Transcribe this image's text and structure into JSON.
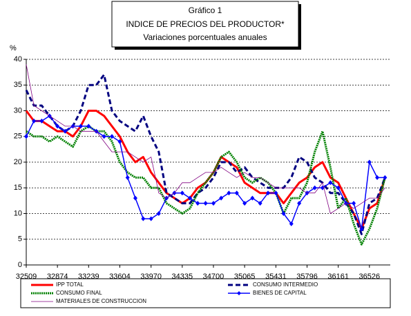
{
  "chart_data": {
    "type": "line",
    "title": "Gráfico 1",
    "subtitle": [
      "INDICE DE PRECIOS DEL PRODUCTOR*",
      "Variaciones porcentuales anuales"
    ],
    "y_label": "%",
    "x": [
      32509,
      32599,
      32690,
      32782,
      32874,
      32964,
      33055,
      33147,
      33239,
      33329,
      33420,
      33512,
      33604,
      33695,
      33786,
      33878,
      33970,
      34060,
      34151,
      34243,
      34335,
      34425,
      34516,
      34608,
      34700,
      34790,
      34881,
      34973,
      35065,
      35156,
      35247,
      35339,
      35431,
      35521,
      35612,
      35704,
      35796,
      35886,
      35977,
      36069,
      36161,
      36251,
      36342,
      36434,
      36526,
      36617,
      36708
    ],
    "xlim": [
      32509,
      36770
    ],
    "xticks": [
      32509,
      32874,
      33239,
      33604,
      33970,
      34335,
      34700,
      35065,
      35431,
      35796,
      36161,
      36526
    ],
    "ylim": [
      0,
      40
    ],
    "yticks": [
      0,
      5,
      10,
      15,
      20,
      25,
      30,
      35,
      40
    ],
    "grid": true,
    "series": [
      {
        "name": "IPP TOTAL",
        "color": "#ff0000",
        "line_style": "solid",
        "width": 3,
        "values": [
          30,
          28,
          28,
          27,
          26,
          26,
          25,
          27,
          30,
          30,
          29,
          27,
          25,
          22,
          20,
          21,
          18,
          16,
          14,
          13,
          12,
          13,
          15,
          16,
          18,
          21,
          20,
          19,
          16,
          15,
          14,
          14,
          14,
          12,
          14,
          16,
          17,
          19,
          20,
          17,
          16,
          13,
          10,
          7,
          11,
          12,
          17
        ]
      },
      {
        "name": "CONSUMO INTERMEDIO",
        "color": "#000080",
        "line_style": "dashed",
        "width": 3,
        "values": [
          34,
          31,
          31,
          29,
          27,
          26,
          27,
          30,
          35,
          35,
          37,
          30,
          28,
          27,
          26,
          29,
          25,
          22,
          14,
          13,
          12,
          12,
          14,
          15,
          17,
          20,
          20,
          18,
          19,
          17,
          16,
          15,
          15,
          15,
          17,
          21,
          20,
          17,
          16,
          14,
          14,
          12,
          10,
          6,
          12,
          13,
          17
        ]
      },
      {
        "name": "CONSUMO FINAL",
        "color": "#008000",
        "line_style": "dotted",
        "width": 3,
        "values": [
          26,
          25,
          25,
          24,
          25,
          24,
          23,
          26,
          27,
          26,
          26,
          24,
          20,
          18,
          17,
          17,
          15,
          15,
          12,
          11,
          10,
          11,
          14,
          16,
          18,
          21,
          22,
          20,
          17,
          16,
          17,
          16,
          14,
          10,
          13,
          13,
          16,
          22,
          26,
          19,
          11,
          13,
          8,
          4,
          7,
          11,
          17
        ]
      },
      {
        "name": "BIENES DE CAPITAL",
        "color": "#0000ff",
        "line_style": "solid",
        "width": 1.5,
        "marker": "diamond",
        "values": [
          25,
          28,
          28,
          29,
          27,
          26,
          27,
          27,
          27,
          26,
          25,
          25,
          24,
          17,
          13,
          9,
          9,
          10,
          13,
          14,
          14,
          13,
          12,
          12,
          12,
          13,
          14,
          14,
          12,
          13,
          12,
          14,
          14,
          10,
          8,
          12,
          14,
          15,
          15,
          16,
          15,
          12,
          12,
          7,
          20,
          17,
          17
        ]
      },
      {
        "name": "MATERIALES DE CONSTRUCCION",
        "color": "#800080",
        "line_style": "solid",
        "width": 0.8,
        "values": [
          39,
          31,
          30,
          29,
          28,
          27,
          27,
          26,
          26,
          26,
          24,
          22,
          22,
          22,
          21,
          20,
          21,
          14,
          13,
          14,
          16,
          16,
          17,
          18,
          18,
          19,
          18,
          17,
          18,
          17,
          17,
          16,
          15,
          15,
          15,
          15,
          14,
          14,
          16,
          10,
          11,
          12,
          11,
          12,
          13,
          13,
          15
        ]
      }
    ]
  }
}
